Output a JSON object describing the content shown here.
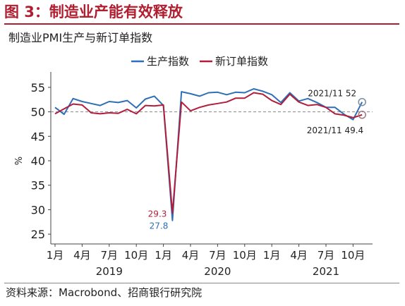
{
  "figure_title": "图 3：制造业产能有效释放",
  "source": "资料来源：Macrobond、招商银行研究院",
  "colors": {
    "title": "#b01e2f",
    "production": "#2e6fb7",
    "new_orders": "#b01e3c",
    "reference": "#888888"
  },
  "chart_data": {
    "type": "line",
    "title": "制造业PMI生产与新订单指数",
    "ylabel": "%",
    "ylim": [
      23,
      57
    ],
    "yticks": [
      25,
      30,
      35,
      40,
      45,
      50,
      55
    ],
    "reference_line": 50,
    "x": [
      "2019-01",
      "2019-02",
      "2019-03",
      "2019-04",
      "2019-05",
      "2019-06",
      "2019-07",
      "2019-08",
      "2019-09",
      "2019-10",
      "2019-11",
      "2019-12",
      "2020-01",
      "2020-02",
      "2020-03",
      "2020-04",
      "2020-05",
      "2020-06",
      "2020-07",
      "2020-08",
      "2020-09",
      "2020-10",
      "2020-11",
      "2020-12",
      "2021-01",
      "2021-02",
      "2021-03",
      "2021-04",
      "2021-05",
      "2021-06",
      "2021-07",
      "2021-08",
      "2021-09",
      "2021-10",
      "2021-11"
    ],
    "x_tick_labels": [
      {
        "month": "2019-01",
        "label": "1月"
      },
      {
        "month": "2019-04",
        "label": "4月"
      },
      {
        "month": "2019-07",
        "label": "7月"
      },
      {
        "month": "2019-10",
        "label": "10月"
      },
      {
        "month": "2020-01",
        "label": "1月"
      },
      {
        "month": "2020-04",
        "label": "4月"
      },
      {
        "month": "2020-07",
        "label": "7月"
      },
      {
        "month": "2020-10",
        "label": "10月"
      },
      {
        "month": "2021-01",
        "label": "1月"
      },
      {
        "month": "2021-04",
        "label": "4月"
      },
      {
        "month": "2021-07",
        "label": "7月"
      },
      {
        "month": "2021-10",
        "label": "10月"
      }
    ],
    "year_labels": [
      {
        "year": "2019",
        "center_month": "2019-07"
      },
      {
        "year": "2020",
        "center_month": "2020-07"
      },
      {
        "year": "2021",
        "center_month": "2021-07"
      }
    ],
    "legend_position": "top-center",
    "series": [
      {
        "name": "生产指数",
        "color": "#2e6fb7",
        "values": [
          50.9,
          49.5,
          52.7,
          52.1,
          51.7,
          51.3,
          52.1,
          51.9,
          52.3,
          50.8,
          52.6,
          53.2,
          51.3,
          27.8,
          54.1,
          53.7,
          53.2,
          53.9,
          54.0,
          53.5,
          54.0,
          53.9,
          54.7,
          54.2,
          53.5,
          51.9,
          53.9,
          52.2,
          52.7,
          51.9,
          50.9,
          50.9,
          49.5,
          48.4,
          52.0
        ]
      },
      {
        "name": "新订单指数",
        "color": "#b01e3c",
        "values": [
          49.6,
          50.6,
          51.6,
          51.4,
          49.8,
          49.6,
          49.8,
          49.7,
          50.5,
          49.6,
          51.3,
          51.2,
          51.4,
          29.3,
          52.0,
          50.2,
          50.9,
          51.4,
          51.7,
          52.0,
          52.8,
          52.8,
          53.9,
          53.6,
          52.3,
          51.5,
          53.6,
          52.0,
          51.3,
          51.5,
          50.9,
          49.6,
          49.3,
          48.8,
          49.4
        ]
      }
    ],
    "annotations": [
      {
        "series": "新订单指数",
        "month": "2020-02",
        "text": "29.3"
      },
      {
        "series": "生产指数",
        "month": "2020-02",
        "text": "27.8"
      },
      {
        "series": "生产指数",
        "month": "2021-11",
        "text": "2021/11 52"
      },
      {
        "series": "新订单指数",
        "month": "2021-11",
        "text": "2021/11 49.4"
      }
    ]
  }
}
